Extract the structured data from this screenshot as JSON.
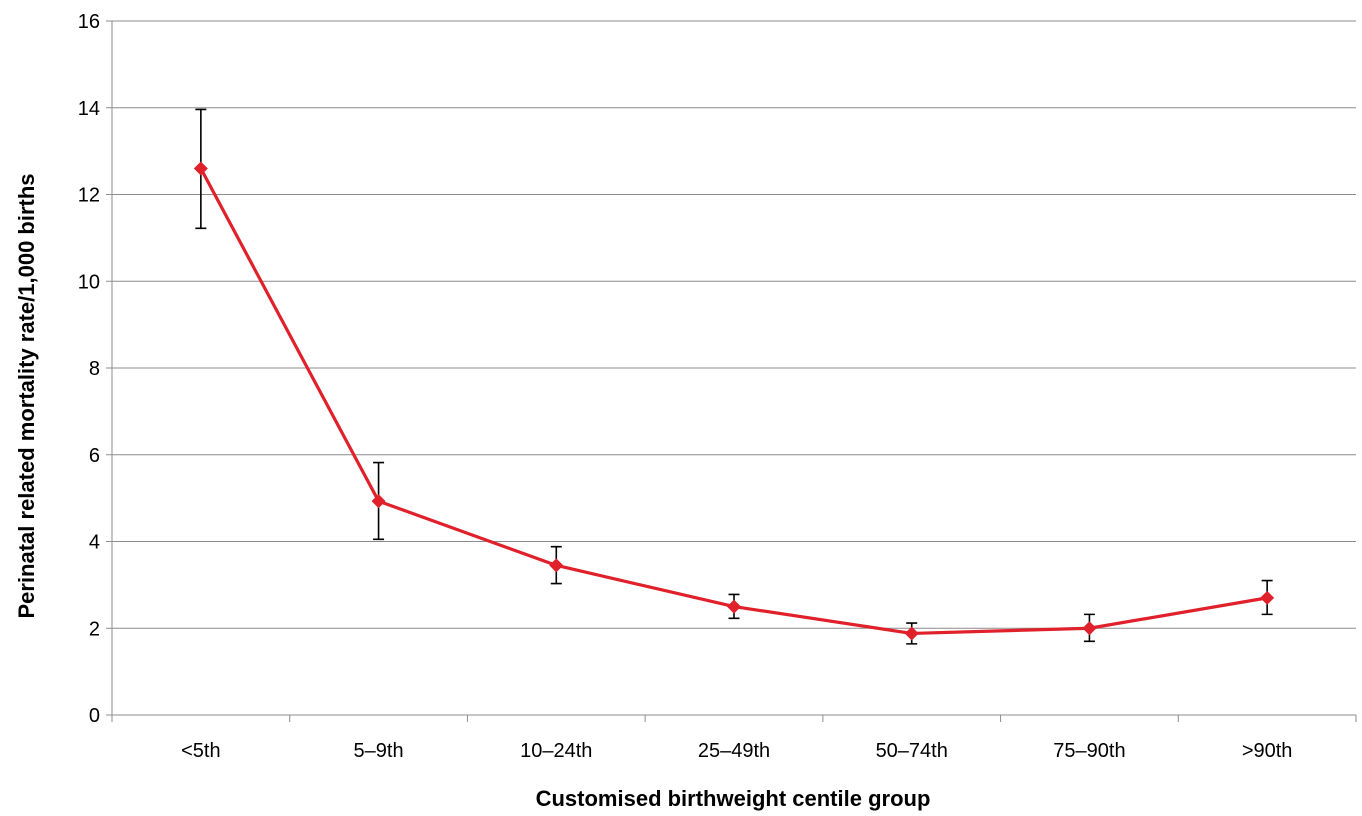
{
  "chart_data": {
    "type": "line",
    "title": "",
    "xlabel": "Customised birthweight centile group",
    "ylabel": "Perinatal related mortality rate/1,000 births",
    "categories": [
      "<5th",
      "5–9th",
      "10–24th",
      "25–49th",
      "50–74th",
      "75–90th",
      ">90th"
    ],
    "ylim": [
      0,
      16
    ],
    "yticks": [
      0,
      2,
      4,
      6,
      8,
      10,
      12,
      14,
      16
    ],
    "ytick_labels": [
      "0",
      "2",
      "4",
      "6",
      "8",
      "10",
      "12",
      "14",
      "16"
    ],
    "grid": true,
    "legend": "none",
    "series": [
      {
        "values": [
          12.6,
          4.93,
          3.45,
          2.5,
          1.88,
          2.0,
          2.7
        ],
        "error_low": [
          11.22,
          4.05,
          3.03,
          2.23,
          1.64,
          1.7,
          2.32
        ],
        "error_high": [
          13.96,
          5.82,
          3.88,
          2.78,
          2.12,
          2.32,
          3.1
        ],
        "color": "#e0202a",
        "marker": "diamond"
      }
    ]
  }
}
